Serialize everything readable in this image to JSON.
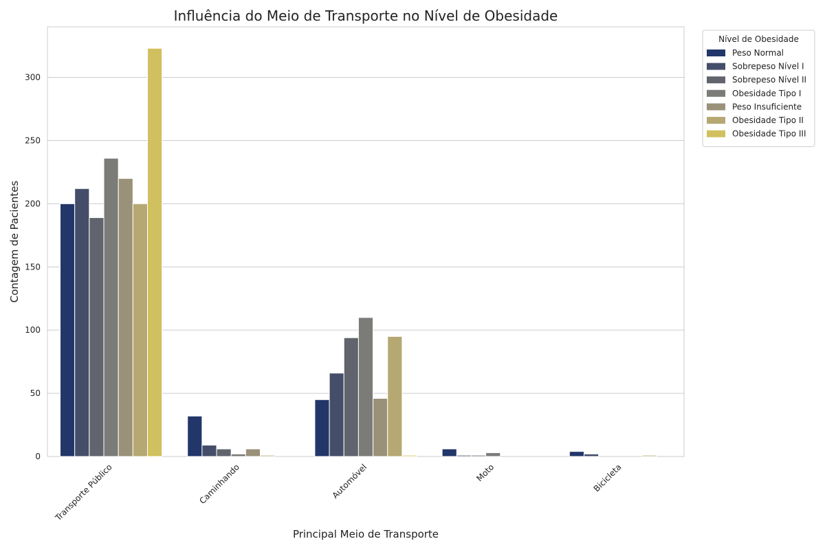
{
  "chart_data": {
    "type": "bar",
    "title": "Influência do Meio de Transporte no Nível de Obesidade",
    "xlabel": "Principal Meio de Transporte",
    "ylabel": "Contagem de Pacientes",
    "categories": [
      "Transporte Público",
      "Caminhando",
      "Automóvel",
      "Moto",
      "Bicicleta"
    ],
    "ylim": [
      0,
      340
    ],
    "yticks": [
      0,
      50,
      100,
      150,
      200,
      250,
      300
    ],
    "grid": "horizontal",
    "legend_title": "Nível de Obesidade",
    "legend_position": "outside top-right",
    "series": [
      {
        "name": "Peso Normal",
        "color": "#22366a",
        "values": [
          200,
          32,
          45,
          6,
          4
        ]
      },
      {
        "name": "Sobrepeso Nível I",
        "color": "#454e69",
        "values": [
          212,
          9,
          66,
          1,
          2
        ]
      },
      {
        "name": "Sobrepeso Nível II",
        "color": "#61646d",
        "values": [
          189,
          6,
          94,
          1,
          0
        ]
      },
      {
        "name": "Obesidade Tipo I",
        "color": "#7b7b78",
        "values": [
          236,
          2,
          110,
          3,
          0
        ]
      },
      {
        "name": "Peso Insuficiente",
        "color": "#9a9179",
        "values": [
          220,
          6,
          46,
          0,
          0
        ]
      },
      {
        "name": "Obesidade Tipo II",
        "color": "#b5a872",
        "values": [
          200,
          1,
          95,
          0,
          1
        ]
      },
      {
        "name": "Obesidade Tipo III",
        "color": "#d1c05f",
        "values": [
          323,
          0,
          1,
          0,
          0
        ]
      }
    ]
  }
}
